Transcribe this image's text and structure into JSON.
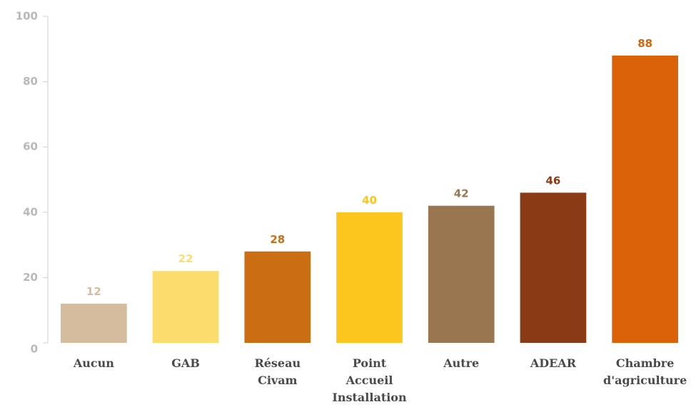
{
  "chart_data": {
    "type": "bar",
    "categories": [
      "Aucun",
      "GAB",
      "Réseau Civam",
      "Point Accueil Installation",
      "Autre",
      "ADEAR",
      "Chambre d'agriculture"
    ],
    "values": [
      12,
      22,
      28,
      40,
      42,
      46,
      88
    ],
    "colors": [
      "#d6bc9f",
      "#fcdc6c",
      "#cb6d12",
      "#fcc61e",
      "#9a7650",
      "#8a3a15",
      "#dc620a"
    ],
    "ylim": [
      0,
      100
    ],
    "yticks": [
      0,
      20,
      40,
      60,
      80,
      100
    ],
    "grid": false
  }
}
